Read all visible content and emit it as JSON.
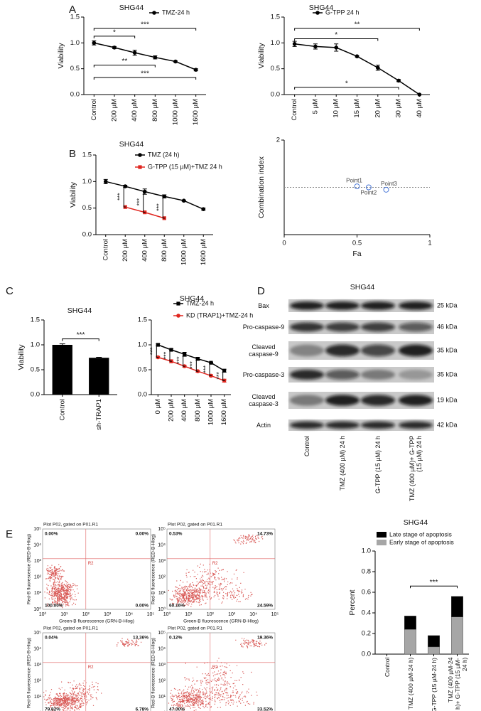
{
  "panel_labels": [
    "A",
    "B",
    "C",
    "D",
    "E"
  ],
  "chart_data": [
    {
      "type": "line",
      "title": "SHG44",
      "ylabel": "Viability",
      "categories": [
        "Control",
        "200 µM",
        "400 µM",
        "800 µM",
        "1000 µM",
        "1600 µM"
      ],
      "ylim": [
        0,
        1.5
      ],
      "yticks": [
        {
          "value": 0,
          "label": "0.0"
        },
        0.5,
        {
          "value": 1,
          "label": "1.0"
        },
        1.5
      ],
      "series": [
        {
          "name": "TMZ-24 h",
          "color": "#000000",
          "marker": "circle",
          "values": [
            1.0,
            0.91,
            0.81,
            0.72,
            0.64,
            0.48
          ],
          "errors": [
            0.04,
            0.02,
            0.05,
            0.03,
            0.01,
            0.02
          ]
        }
      ],
      "annotations": [
        "*",
        "***",
        "**",
        "***"
      ]
    },
    {
      "type": "line",
      "title": "SHG44",
      "ylabel": "Viability",
      "categories": [
        "Control",
        "5 µM",
        "10 µM",
        "15 µM",
        "20 µM",
        "30 µM",
        "40 µM"
      ],
      "ylim": [
        0,
        1.5
      ],
      "yticks": [
        {
          "value": 0,
          "label": "0.0"
        },
        0.5,
        {
          "value": 1,
          "label": "1.0"
        },
        1.5
      ],
      "series": [
        {
          "name": "G-TPP 24 h",
          "color": "#000000",
          "marker": "circle",
          "values": [
            0.98,
            0.93,
            0.91,
            0.74,
            0.52,
            0.27,
            0.0
          ],
          "errors": [
            0.05,
            0.05,
            0.07,
            0.01,
            0.05,
            0.02,
            0.0
          ]
        }
      ],
      "annotations": [
        "*",
        "**",
        "*"
      ]
    },
    {
      "type": "line",
      "title": "SHG44",
      "ylabel": "Viability",
      "categories": [
        "Control",
        "200 µM",
        "400 µM",
        "800 µM",
        "1000 µM",
        "1600 µM"
      ],
      "ylim": [
        0,
        1.5
      ],
      "yticks": [
        {
          "value": 0,
          "label": "0.0"
        },
        0.5,
        {
          "value": 1,
          "label": "1.0"
        },
        1.5
      ],
      "series": [
        {
          "name": "TMZ (24 h)",
          "color": "#000000",
          "marker": "circle",
          "values": [
            1.0,
            0.91,
            0.81,
            0.72,
            0.64,
            0.48
          ],
          "errors": [
            0.04,
            0.02,
            0.05,
            0.03,
            0.01,
            0.02
          ]
        },
        {
          "name": "G-TPP (15 µM)+TMZ 24 h",
          "color": "#e0261f",
          "marker": "square",
          "values": [
            null,
            0.52,
            0.42,
            0.31,
            null,
            null
          ]
        }
      ],
      "annotations": [
        "***",
        "***",
        "***"
      ]
    },
    {
      "type": "scatter",
      "xlabel": "Fa",
      "ylabel": "Combination index",
      "color": "#4a78d8",
      "xlim": [
        0,
        1
      ],
      "xticks": [
        0,
        0.5,
        1
      ],
      "ylim": [
        0,
        2
      ],
      "yticks": [
        2
      ],
      "reference_line": 1,
      "x": [
        0.5,
        0.58,
        0.7
      ],
      "values": [
        1.02,
        1.0,
        0.95
      ],
      "point_labels": [
        "Point1",
        "Point2",
        "Point3"
      ]
    },
    {
      "type": "bar",
      "title": "SHG44",
      "ylabel": "Viability",
      "color": "#000000",
      "categories": [
        "Control",
        "sh-TRAP1"
      ],
      "values": [
        1.0,
        0.74
      ],
      "errors": [
        0.02,
        0.01
      ],
      "ylim": [
        0,
        1.5
      ],
      "yticks": [
        {
          "value": 0,
          "label": "0.0"
        },
        0.5,
        {
          "value": 1,
          "label": "1.0"
        },
        1.5
      ],
      "annotations": [
        "***"
      ]
    },
    {
      "type": "line",
      "title": "SHG44",
      "categories": [
        "0 µM",
        "200 µM",
        "400 µM",
        "800 µM",
        "1000 µM",
        "1600 µM"
      ],
      "ylim": [
        0,
        1.5
      ],
      "yticks": [
        {
          "value": 0,
          "label": "0.0"
        },
        0.5,
        {
          "value": 1,
          "label": "1.0"
        },
        1.5
      ],
      "series": [
        {
          "name": "TMZ-24 h",
          "color": "#000000",
          "marker": "square",
          "values": [
            1.0,
            0.9,
            0.81,
            0.72,
            0.64,
            0.48
          ],
          "errors": [
            0.02,
            0.02,
            0.04,
            0.03,
            0.01,
            0.03
          ]
        },
        {
          "name": "KD (TRAP1)+TMZ-24 h",
          "color": "#e0261f",
          "marker": "circle",
          "values": [
            0.75,
            0.67,
            0.57,
            0.47,
            0.38,
            0.28
          ],
          "errors": [
            0.02,
            0.03,
            0.02,
            0.02,
            0.02,
            0.03
          ]
        }
      ],
      "annotations": [
        "***",
        "***",
        "***",
        "***",
        "***",
        "***"
      ]
    },
    {
      "type": "bar",
      "stacked": true,
      "title": "SHG44",
      "ylabel": "Percent",
      "categories": [
        "Control",
        "TMZ (400 µM-24 h)",
        "G-TPP (15 µM-24 h)",
        "TMZ (400 µM-24 h)+ G-TPP (15 µM-24 h)"
      ],
      "ylim": [
        0,
        1
      ],
      "yticks": [
        {
          "value": 0,
          "label": "0.0"
        },
        0.2,
        0.4,
        0.6,
        0.8,
        {
          "value": 1,
          "label": "1.0"
        }
      ],
      "series": [
        {
          "name": "Late stage of apoptosis",
          "color": "#000000",
          "values": [
            0,
            0.13,
            0.11,
            0.2
          ]
        },
        {
          "name": "Early stage of apoptosis",
          "color": "#a6a6a6",
          "values": [
            0,
            0.24,
            0.07,
            0.36
          ]
        }
      ],
      "annotations": [
        "***"
      ]
    }
  ],
  "western_blot": {
    "title": "SHG44",
    "rows": [
      "Bax",
      "Pro-caspase-9",
      "Cleaved caspase-9",
      "Pro-caspase-3",
      "Cleaved caspase-3",
      "Actin"
    ],
    "sizes": [
      "25 kDa",
      "46 kDa",
      "35 kDa",
      "35 kDa",
      "19 kDa",
      "42 kDa"
    ],
    "lanes": [
      "Control",
      "TMZ (400 µM) 24 h",
      "G-TPP (15 µM) 24 h",
      "TMZ (400 µM)+ G-TPP (15 µM) 24 h"
    ]
  },
  "flow_cytometry": {
    "ylabel": "Red-B fluorescence (RED-B-Hlog)",
    "xlabel": "Green-B fluorescence (GRN-B-Hlog)",
    "ticks": [
      "10⁰",
      "10¹",
      "10²",
      "10³",
      "10⁴",
      "10⁵"
    ],
    "region": "R2",
    "plots": [
      {
        "title": "Plot P02, gated on P01.R1",
        "quadrants": [
          "0.00%",
          "0.00%",
          "100.00%",
          "0.00%"
        ]
      },
      {
        "title": "Plot P02, gated on P01.R1",
        "quadrants": [
          "0.53%",
          "14.73%",
          "60.16%",
          "24.59%"
        ]
      },
      {
        "title": "Plot P02, gated on P01.R1",
        "quadrants": [
          "0.04%",
          "13.36%",
          "79.82%",
          "6.78%"
        ]
      },
      {
        "title": "Plot P02, gated on P01.R1",
        "quadrants": [
          "0.12%",
          "19.36%",
          "47.00%",
          "33.52%"
        ]
      }
    ]
  }
}
